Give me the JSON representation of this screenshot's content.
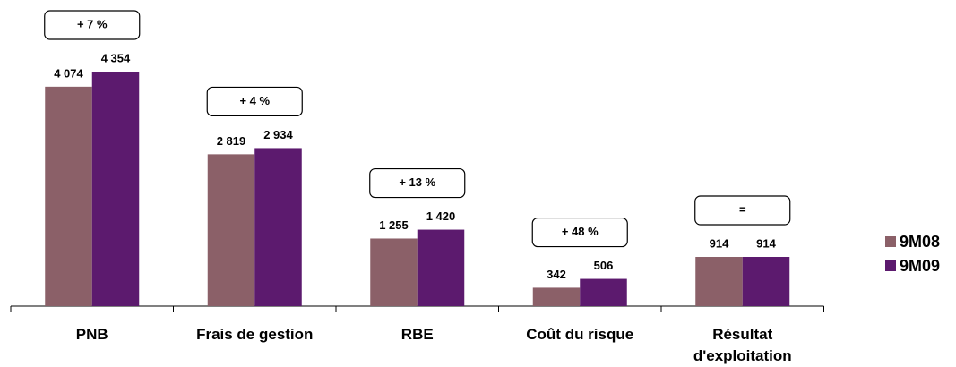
{
  "chart_data": {
    "type": "bar",
    "categories": [
      "PNB",
      "Frais de gestion",
      "RBE",
      "Coût du risque",
      "Résultat d'exploitation"
    ],
    "series": [
      {
        "name": "9M08",
        "color": "#8b6068",
        "values": [
          4074,
          2819,
          1255,
          342,
          914
        ],
        "value_labels": [
          "4 074",
          "2 819",
          "1 255",
          "342",
          "914"
        ]
      },
      {
        "name": "9M09",
        "color": "#5c1a6e",
        "values": [
          4354,
          2934,
          1420,
          506,
          914
        ],
        "value_labels": [
          "4 354",
          "2 934",
          "1 420",
          "506",
          "914"
        ]
      }
    ],
    "annotations": [
      "+ 7 %",
      "+ 4 %",
      "+ 13 %",
      "+ 48 %",
      "="
    ],
    "legend": "right"
  }
}
